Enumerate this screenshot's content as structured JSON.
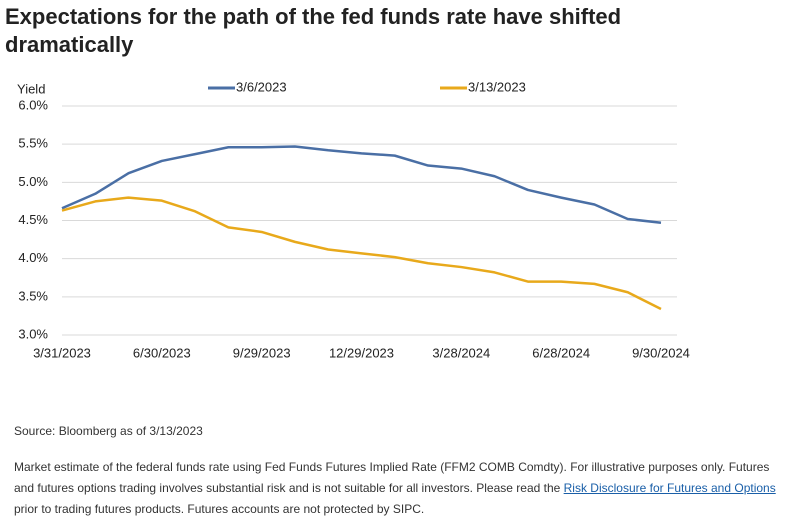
{
  "chart_data": {
    "type": "line",
    "title": "Expectations for the path of the fed funds rate have shifted dramatically",
    "y_label": "Yield",
    "categories": [
      "3/31/2023",
      null,
      null,
      "6/30/2023",
      null,
      null,
      "9/29/2023",
      null,
      null,
      "12/29/2023",
      null,
      null,
      "3/28/2024",
      null,
      null,
      "6/28/2024",
      null,
      null,
      "9/30/2024"
    ],
    "series": [
      {
        "name": "3/6/2023",
        "color": "#4a6fa5",
        "values": [
          4.66,
          4.85,
          5.12,
          5.28,
          5.37,
          5.46,
          5.46,
          5.47,
          5.42,
          5.38,
          5.35,
          5.22,
          5.18,
          5.08,
          4.9,
          4.8,
          4.71,
          4.52,
          4.47
        ]
      },
      {
        "name": "3/13/2023",
        "color": "#e8a91b",
        "values": [
          4.63,
          4.75,
          4.8,
          4.76,
          4.62,
          4.41,
          4.35,
          4.22,
          4.12,
          4.07,
          4.02,
          3.94,
          3.89,
          3.82,
          3.7,
          3.7,
          3.67,
          3.56,
          3.34
        ]
      }
    ],
    "ylim": [
      3.0,
      6.0
    ],
    "yticks": [
      {
        "value": 3.0,
        "label": "3.0%"
      },
      {
        "value": 3.5,
        "label": "3.5%"
      },
      {
        "value": 4.0,
        "label": "4.0%"
      },
      {
        "value": 4.5,
        "label": "4.5%"
      },
      {
        "value": 5.0,
        "label": "5.0%"
      },
      {
        "value": 5.5,
        "label": "5.5%"
      },
      {
        "value": 6.0,
        "label": "6.0%"
      }
    ],
    "grid": true,
    "legend": "top"
  },
  "notes": {
    "source": "Source: Bloomberg as of 3/13/2023",
    "text_before": "Market estimate of the federal funds rate using Fed Funds Futures Implied Rate (FFM2 COMB Comdty). For illustrative purposes only. Futures and futures options trading involves substantial risk and is not suitable for all investors. Please read the ",
    "link": "Risk Disclosure for Futures and Options",
    "text_after": " prior to trading futures products. Futures accounts are not protected by SIPC."
  }
}
